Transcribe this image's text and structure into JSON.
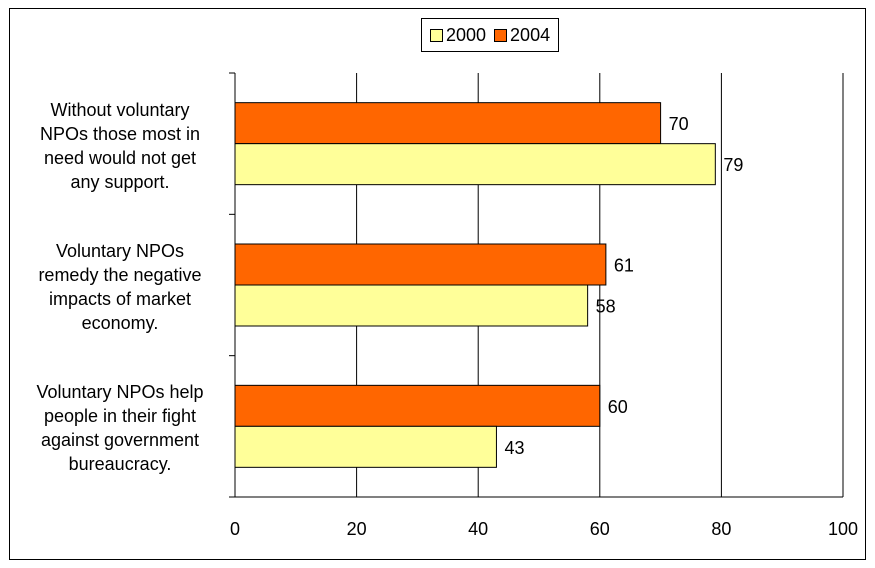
{
  "chart_data": {
    "type": "bar",
    "orientation": "horizontal",
    "categories": [
      "Without voluntary NPOs those most in need would not get any support.",
      "Voluntary NPOs remedy the negative impacts of market economy.",
      "Voluntary NPOs help people in their fight against government bureaucracy."
    ],
    "category_lines": [
      [
        "Without voluntary",
        "NPOs those most in",
        "need would not get",
        "any support."
      ],
      [
        "Voluntary NPOs",
        "remedy the negative",
        "impacts of market",
        "economy."
      ],
      [
        "Voluntary NPOs help",
        "people in their fight",
        "against government",
        "bureaucracy."
      ]
    ],
    "series": [
      {
        "name": "2000",
        "color": "#ffff99",
        "values": [
          79,
          58,
          43
        ]
      },
      {
        "name": "2004",
        "color": "#ff6600",
        "values": [
          70,
          61,
          60
        ]
      }
    ],
    "xlim": [
      0,
      100
    ],
    "xticks": [
      "0",
      "20",
      "40",
      "60",
      "80",
      "100"
    ],
    "grid": true,
    "legend_position": "top",
    "data_labels": true
  }
}
